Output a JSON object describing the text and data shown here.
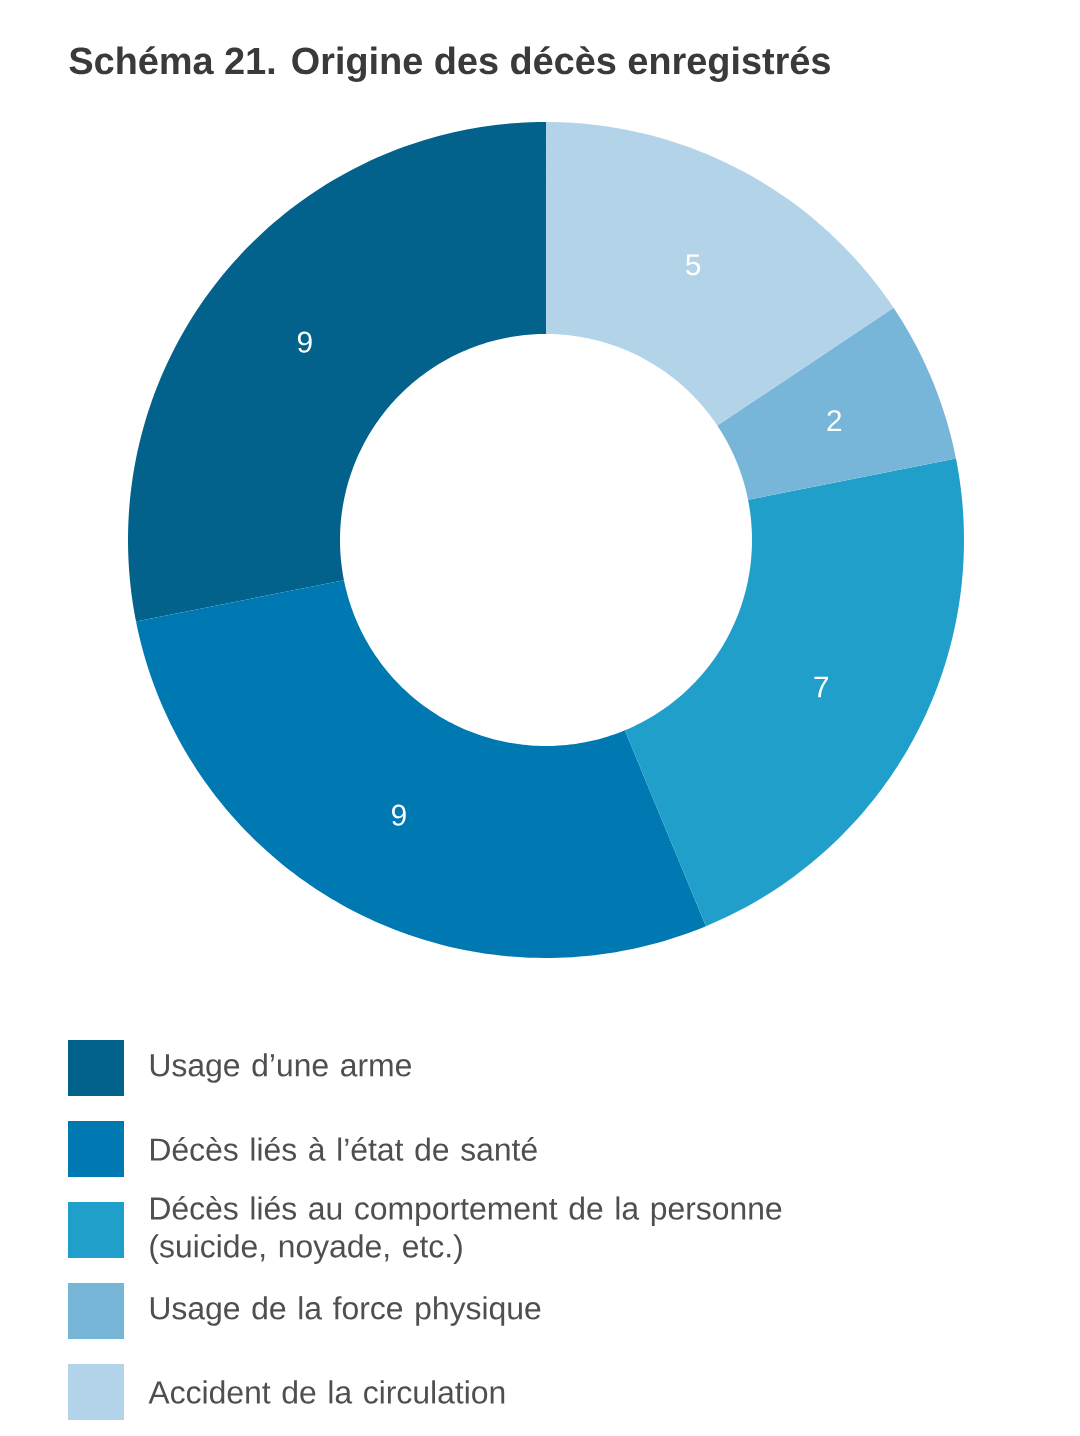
{
  "chart_data": {
    "type": "donut",
    "title": "Schéma 21. Origine des décès enregistrés",
    "categories": [
      "Usage d’une arme",
      "Décès liés à l’état de santé",
      "Décès liés au comportement de la personne (suicide, noyade, etc.)",
      "Usage de la force physique",
      "Accident de la circulation"
    ],
    "values": [
      9,
      9,
      7,
      2,
      5
    ],
    "colors": [
      "#02628c",
      "#0079b3",
      "#219fcb",
      "#78b6d9",
      "#b3d3e9"
    ],
    "data_labels": true,
    "legend": "bottom"
  }
}
